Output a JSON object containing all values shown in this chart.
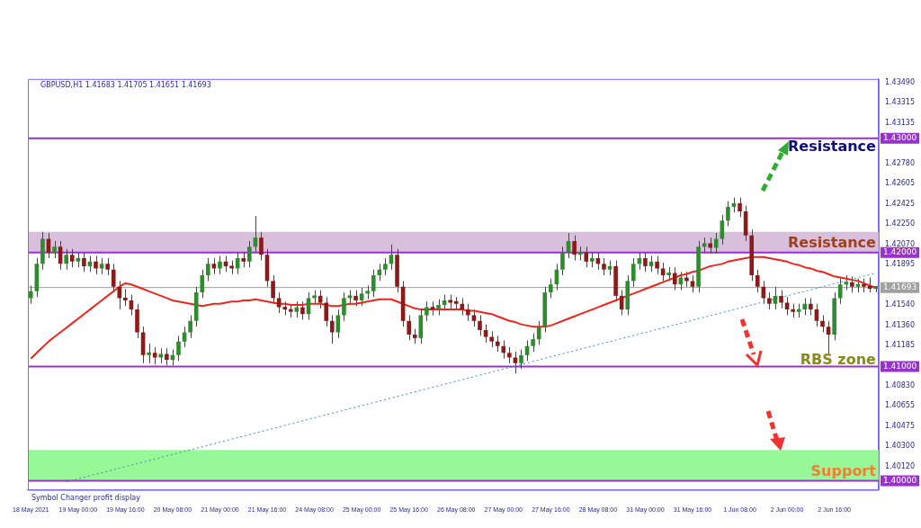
{
  "chart_data": {
    "type": "candlestick",
    "title": "GBPUSD,H1 1.41683 1.41705 1.41651 1.41693",
    "categories": [
      "18 May 2021",
      null,
      null,
      null,
      null,
      null,
      null,
      null,
      "19 May 00:00",
      null,
      null,
      null,
      null,
      null,
      null,
      null,
      "19 May 16:00",
      null,
      null,
      null,
      null,
      null,
      null,
      null,
      "20 May 08:00",
      null,
      null,
      null,
      null,
      null,
      null,
      null,
      "21 May 00:00",
      null,
      null,
      null,
      null,
      null,
      null,
      null,
      "21 May 16:00",
      null,
      null,
      null,
      null,
      null,
      null,
      null,
      "24 May 08:00",
      null,
      null,
      null,
      null,
      null,
      null,
      null,
      "25 May 00:00",
      null,
      null,
      null,
      null,
      null,
      null,
      null,
      "25 May 16:00",
      null,
      null,
      null,
      null,
      null,
      null,
      null,
      "26 May 08:00",
      null,
      null,
      null,
      null,
      null,
      null,
      null,
      "27 May 00:00",
      null,
      null,
      null,
      null,
      null,
      null,
      null,
      "27 May 16:00",
      null,
      null,
      null,
      null,
      null,
      null,
      null,
      "28 May 08:00",
      null,
      null,
      null,
      null,
      null,
      null,
      null,
      "31 May 00:00",
      null,
      null,
      null,
      null,
      null,
      null,
      null,
      "31 May 16:00",
      null,
      null,
      null,
      null,
      null,
      null,
      null,
      "1 Jun 08:00",
      null,
      null,
      null,
      null,
      null,
      null,
      null,
      "2 Jun 00:00",
      null,
      null,
      null,
      null,
      null,
      null,
      null,
      "2 Jun 16:00",
      null,
      null,
      null,
      null,
      null,
      null,
      null
    ],
    "ohlc": [
      [
        1.416,
        1.4171,
        1.4155,
        1.4166
      ],
      [
        1.4166,
        1.4195,
        1.4161,
        1.419
      ],
      [
        1.419,
        1.4218,
        1.4185,
        1.4212
      ],
      [
        1.4212,
        1.4217,
        1.4195,
        1.42
      ],
      [
        1.42,
        1.421,
        1.4195,
        1.4205
      ],
      [
        1.4205,
        1.421,
        1.4185,
        1.419
      ],
      [
        1.419,
        1.4203,
        1.4185,
        1.4198
      ],
      [
        1.4198,
        1.4203,
        1.4187,
        1.4192
      ],
      [
        1.4192,
        1.42,
        1.4187,
        1.4195
      ],
      [
        1.4195,
        1.42,
        1.4183,
        1.4188
      ],
      [
        1.4188,
        1.4197,
        1.4183,
        1.4192
      ],
      [
        1.4192,
        1.4197,
        1.4181,
        1.4186
      ],
      [
        1.4186,
        1.4195,
        1.4181,
        1.419
      ],
      [
        1.419,
        1.4195,
        1.418,
        1.4185
      ],
      [
        1.4185,
        1.419,
        1.4165,
        1.417
      ],
      [
        1.417,
        1.4175,
        1.415,
        1.416
      ],
      [
        1.416,
        1.4168,
        1.4153,
        1.4158
      ],
      [
        1.4158,
        1.4163,
        1.4145,
        1.415
      ],
      [
        1.415,
        1.4155,
        1.4125,
        1.413
      ],
      [
        1.413,
        1.4135,
        1.4103,
        1.411
      ],
      [
        1.411,
        1.412,
        1.4103,
        1.4112
      ],
      [
        1.4112,
        1.4117,
        1.4102,
        1.4108
      ],
      [
        1.4108,
        1.4116,
        1.4103,
        1.4111
      ],
      [
        1.4111,
        1.4116,
        1.4101,
        1.4106
      ],
      [
        1.4106,
        1.4115,
        1.4101,
        1.411
      ],
      [
        1.411,
        1.4127,
        1.4105,
        1.4122
      ],
      [
        1.4122,
        1.4135,
        1.4117,
        1.413
      ],
      [
        1.413,
        1.4145,
        1.4125,
        1.414
      ],
      [
        1.414,
        1.417,
        1.4135,
        1.4165
      ],
      [
        1.4165,
        1.4185,
        1.416,
        1.418
      ],
      [
        1.418,
        1.4195,
        1.4175,
        1.419
      ],
      [
        1.419,
        1.4195,
        1.4181,
        1.4186
      ],
      [
        1.4186,
        1.4197,
        1.4181,
        1.4192
      ],
      [
        1.4192,
        1.4197,
        1.4183,
        1.4188
      ],
      [
        1.4188,
        1.4193,
        1.4181,
        1.4186
      ],
      [
        1.4186,
        1.42,
        1.4181,
        1.4195
      ],
      [
        1.4195,
        1.42,
        1.4187,
        1.4192
      ],
      [
        1.4192,
        1.421,
        1.4187,
        1.4205
      ],
      [
        1.4205,
        1.4232,
        1.42,
        1.4213
      ],
      [
        1.4213,
        1.4218,
        1.4193,
        1.4198
      ],
      [
        1.4198,
        1.4203,
        1.417,
        1.4175
      ],
      [
        1.4175,
        1.418,
        1.4155,
        1.416
      ],
      [
        1.416,
        1.4165,
        1.4147,
        1.4152
      ],
      [
        1.4152,
        1.4157,
        1.4145,
        1.415
      ],
      [
        1.415,
        1.4155,
        1.4143,
        1.4148
      ],
      [
        1.4148,
        1.4157,
        1.4143,
        1.4152
      ],
      [
        1.4152,
        1.4157,
        1.4141,
        1.4146
      ],
      [
        1.4146,
        1.4165,
        1.4141,
        1.416
      ],
      [
        1.416,
        1.4167,
        1.4155,
        1.4162
      ],
      [
        1.4162,
        1.4167,
        1.4151,
        1.4156
      ],
      [
        1.4156,
        1.4161,
        1.4135,
        1.414
      ],
      [
        1.414,
        1.4145,
        1.412,
        1.413
      ],
      [
        1.413,
        1.415,
        1.4125,
        1.4145
      ],
      [
        1.4145,
        1.4165,
        1.414,
        1.416
      ],
      [
        1.416,
        1.4167,
        1.4155,
        1.4162
      ],
      [
        1.4162,
        1.4167,
        1.4153,
        1.4158
      ],
      [
        1.4158,
        1.4169,
        1.4153,
        1.4164
      ],
      [
        1.4164,
        1.4171,
        1.4159,
        1.4166
      ],
      [
        1.4166,
        1.4185,
        1.4161,
        1.418
      ],
      [
        1.418,
        1.419,
        1.4175,
        1.4185
      ],
      [
        1.4185,
        1.4195,
        1.418,
        1.419
      ],
      [
        1.419,
        1.4207,
        1.4185,
        1.4198
      ],
      [
        1.4198,
        1.4203,
        1.4165,
        1.417
      ],
      [
        1.417,
        1.4175,
        1.4135,
        1.414
      ],
      [
        1.414,
        1.4145,
        1.4123,
        1.4128
      ],
      [
        1.4128,
        1.4133,
        1.412,
        1.4125
      ],
      [
        1.4125,
        1.415,
        1.412,
        1.4145
      ],
      [
        1.4145,
        1.4157,
        1.414,
        1.4152
      ],
      [
        1.4152,
        1.4157,
        1.4145,
        1.415
      ],
      [
        1.415,
        1.4159,
        1.4145,
        1.4154
      ],
      [
        1.4154,
        1.4163,
        1.4149,
        1.4158
      ],
      [
        1.4158,
        1.4163,
        1.4151,
        1.4156
      ],
      [
        1.4156,
        1.4161,
        1.415,
        1.4155
      ],
      [
        1.4155,
        1.416,
        1.4145,
        1.415
      ],
      [
        1.415,
        1.4155,
        1.414,
        1.4145
      ],
      [
        1.4145,
        1.415,
        1.4135,
        1.414
      ],
      [
        1.414,
        1.4145,
        1.4127,
        1.4132
      ],
      [
        1.4132,
        1.4137,
        1.4121,
        1.4126
      ],
      [
        1.4126,
        1.4131,
        1.4117,
        1.4122
      ],
      [
        1.4122,
        1.4127,
        1.4113,
        1.4118
      ],
      [
        1.4118,
        1.4123,
        1.4107,
        1.4112
      ],
      [
        1.4112,
        1.4117,
        1.4103,
        1.4108
      ],
      [
        1.4108,
        1.4113,
        1.4094,
        1.4103
      ],
      [
        1.4103,
        1.4115,
        1.4098,
        1.411
      ],
      [
        1.411,
        1.4123,
        1.4105,
        1.4118
      ],
      [
        1.4118,
        1.4129,
        1.4113,
        1.4124
      ],
      [
        1.4124,
        1.414,
        1.4119,
        1.4135
      ],
      [
        1.4135,
        1.417,
        1.413,
        1.4165
      ],
      [
        1.4165,
        1.4177,
        1.416,
        1.4172
      ],
      [
        1.4172,
        1.419,
        1.4167,
        1.4185
      ],
      [
        1.4185,
        1.4205,
        1.418,
        1.42
      ],
      [
        1.42,
        1.4217,
        1.4195,
        1.421
      ],
      [
        1.421,
        1.4215,
        1.4193,
        1.4198
      ],
      [
        1.4198,
        1.4205,
        1.4193,
        1.42
      ],
      [
        1.42,
        1.4205,
        1.4187,
        1.4192
      ],
      [
        1.4192,
        1.42,
        1.4187,
        1.4195
      ],
      [
        1.4195,
        1.42,
        1.4185,
        1.419
      ],
      [
        1.419,
        1.4195,
        1.418,
        1.4185
      ],
      [
        1.4185,
        1.4193,
        1.418,
        1.4188
      ],
      [
        1.4188,
        1.4193,
        1.4157,
        1.4162
      ],
      [
        1.4162,
        1.4167,
        1.4145,
        1.415
      ],
      [
        1.415,
        1.418,
        1.4145,
        1.4175
      ],
      [
        1.4175,
        1.4195,
        1.417,
        1.419
      ],
      [
        1.419,
        1.42,
        1.4185,
        1.4195
      ],
      [
        1.4195,
        1.42,
        1.4183,
        1.4188
      ],
      [
        1.4188,
        1.4197,
        1.4183,
        1.4192
      ],
      [
        1.4192,
        1.4197,
        1.4181,
        1.4186
      ],
      [
        1.4186,
        1.4191,
        1.4175,
        1.418
      ],
      [
        1.418,
        1.4187,
        1.4175,
        1.4182
      ],
      [
        1.4182,
        1.4187,
        1.4167,
        1.4172
      ],
      [
        1.4172,
        1.4183,
        1.4167,
        1.4178
      ],
      [
        1.4178,
        1.4183,
        1.417,
        1.4175
      ],
      [
        1.4175,
        1.418,
        1.4165,
        1.417
      ],
      [
        1.417,
        1.421,
        1.4165,
        1.4205
      ],
      [
        1.4205,
        1.4213,
        1.42,
        1.4208
      ],
      [
        1.4208,
        1.4213,
        1.4199,
        1.4204
      ],
      [
        1.4204,
        1.4217,
        1.4199,
        1.4212
      ],
      [
        1.4212,
        1.4233,
        1.4207,
        1.4228
      ],
      [
        1.4228,
        1.4245,
        1.4223,
        1.424
      ],
      [
        1.424,
        1.4248,
        1.4235,
        1.4243
      ],
      [
        1.4243,
        1.4248,
        1.4231,
        1.4236
      ],
      [
        1.4236,
        1.4241,
        1.421,
        1.4215
      ],
      [
        1.4215,
        1.422,
        1.4175,
        1.418
      ],
      [
        1.418,
        1.4185,
        1.4165,
        1.417
      ],
      [
        1.417,
        1.4175,
        1.4155,
        1.416
      ],
      [
        1.416,
        1.4165,
        1.415,
        1.4155
      ],
      [
        1.4155,
        1.417,
        1.415,
        1.4162
      ],
      [
        1.4162,
        1.4167,
        1.4151,
        1.4156
      ],
      [
        1.4156,
        1.4161,
        1.4145,
        1.415
      ],
      [
        1.415,
        1.4155,
        1.4143,
        1.4148
      ],
      [
        1.4148,
        1.4155,
        1.4143,
        1.415
      ],
      [
        1.415,
        1.416,
        1.4145,
        1.4155
      ],
      [
        1.4155,
        1.416,
        1.4145,
        1.415
      ],
      [
        1.415,
        1.4155,
        1.4135,
        1.414
      ],
      [
        1.414,
        1.4145,
        1.413,
        1.4135
      ],
      [
        1.4135,
        1.414,
        1.411,
        1.4128
      ],
      [
        1.4128,
        1.4165,
        1.4123,
        1.416
      ],
      [
        1.416,
        1.4177,
        1.4155,
        1.4172
      ],
      [
        1.4172,
        1.418,
        1.4167,
        1.4174
      ],
      [
        1.4174,
        1.4179,
        1.4165,
        1.417
      ],
      [
        1.417,
        1.4177,
        1.4165,
        1.4172
      ],
      [
        1.4172,
        1.4177,
        1.4165,
        1.417
      ],
      [
        1.417,
        1.4178,
        1.4165,
        1.41683
      ],
      [
        1.41683,
        1.41705,
        1.41651,
        1.41693
      ]
    ],
    "series": [
      {
        "type": "line",
        "color": "#e8281e",
        "values": [
          1.4107,
          1.4112,
          1.4117,
          1.4122,
          1.4126,
          1.413,
          1.4134,
          1.4138,
          1.4142,
          1.4146,
          1.415,
          1.4154,
          1.4158,
          1.4162,
          1.4166,
          1.417,
          1.4173,
          1.4172,
          1.417,
          1.4168,
          1.4166,
          1.4164,
          1.4162,
          1.416,
          1.4158,
          1.4157,
          1.4156,
          1.4155,
          1.4154,
          1.4153,
          1.4154,
          1.4155,
          1.4155,
          1.4156,
          1.4157,
          1.4157,
          1.4158,
          1.4158,
          1.4159,
          1.4158,
          1.4157,
          1.4156,
          1.4155,
          1.4155,
          1.4154,
          1.4154,
          1.4154,
          1.4155,
          1.4155,
          1.4155,
          1.4154,
          1.4153,
          1.4153,
          1.4154,
          1.4155,
          1.4155,
          1.4156,
          1.4157,
          1.4158,
          1.4159,
          1.4159,
          1.4159,
          1.4157,
          1.4155,
          1.4153,
          1.4151,
          1.415,
          1.415,
          1.415,
          1.415,
          1.415,
          1.415,
          1.415,
          1.415,
          1.4149,
          1.4149,
          1.4148,
          1.4147,
          1.4146,
          1.4144,
          1.4142,
          1.414,
          1.4139,
          1.4137,
          1.4136,
          1.4135,
          1.4135,
          1.4135,
          1.4136,
          1.4138,
          1.414,
          1.4142,
          1.4144,
          1.4146,
          1.4148,
          1.415,
          1.4152,
          1.4154,
          1.4156,
          1.4158,
          1.416,
          1.4162,
          1.4164,
          1.4166,
          1.4168,
          1.417,
          1.4172,
          1.4174,
          1.4176,
          1.4178,
          1.418,
          1.4181,
          1.4183,
          1.4184,
          1.4186,
          1.4188,
          1.4189,
          1.419,
          1.4192,
          1.4193,
          1.4194,
          1.4195,
          1.4196,
          1.4196,
          1.4196,
          1.4195,
          1.4194,
          1.4193,
          1.4192,
          1.419,
          1.4189,
          1.4187,
          1.4186,
          1.4184,
          1.4183,
          1.4181,
          1.4179,
          1.4178,
          1.4177,
          1.4176,
          1.4175,
          1.4173,
          1.4171,
          1.4169
        ]
      },
      {
        "type": "line",
        "color": "#3a8fa8",
        "line_style": "dotted",
        "values": [
          null,
          null,
          null,
          null,
          null,
          null,
          1.3999,
          null,
          null,
          null,
          null,
          null,
          null,
          null,
          null,
          null,
          null,
          null,
          null,
          null,
          null,
          null,
          null,
          null,
          null,
          null,
          null,
          null,
          null,
          null,
          null,
          null,
          null,
          null,
          null,
          null,
          null,
          null,
          null,
          null,
          null,
          null,
          null,
          null,
          null,
          null,
          null,
          null,
          null,
          null,
          null,
          null,
          null,
          null,
          null,
          null,
          null,
          null,
          null,
          null,
          null,
          null,
          null,
          null,
          null,
          null,
          null,
          null,
          null,
          null,
          null,
          null,
          null,
          null,
          null,
          null,
          null,
          null,
          null,
          null,
          null,
          null,
          null,
          null,
          null,
          null,
          null,
          null,
          null,
          null,
          null,
          null,
          null,
          null,
          null,
          null,
          null,
          null,
          null,
          null,
          null,
          null,
          null,
          null,
          null,
          null,
          null,
          null,
          null,
          null,
          null,
          null,
          null,
          null,
          null,
          null,
          null,
          null,
          null,
          null,
          null,
          null,
          null,
          null,
          null,
          null,
          null,
          null,
          null,
          null,
          null,
          null,
          null,
          null,
          null,
          null,
          null,
          null,
          null,
          null,
          null,
          null,
          null,
          1.4182
        ]
      }
    ],
    "ylim": [
      1.3992,
      1.4352
    ],
    "yticks": [
      {
        "value": 1.4349,
        "label": "1.43490"
      },
      {
        "value": 1.43315,
        "label": "1.43315"
      },
      {
        "value": 1.43135,
        "label": "1.43135"
      },
      {
        "value": 1.4278,
        "label": "1.42780"
      },
      {
        "value": 1.42605,
        "label": "1.42605"
      },
      {
        "value": 1.42425,
        "label": "1.42425"
      },
      {
        "value": 1.4225,
        "label": "1.42250"
      },
      {
        "value": 1.4207,
        "label": "1.42070"
      },
      {
        "value": 1.41895,
        "label": "1.41895"
      },
      {
        "value": 1.4154,
        "label": "1.41540"
      },
      {
        "value": 1.4136,
        "label": "1.41360"
      },
      {
        "value": 1.41185,
        "label": "1.41185"
      },
      {
        "value": 1.4083,
        "label": "1.40830"
      },
      {
        "value": 1.40655,
        "label": "1.40655"
      },
      {
        "value": 1.40475,
        "label": "1.40475"
      },
      {
        "value": 1.403,
        "label": "1.40300"
      },
      {
        "value": 1.4012,
        "label": "1.40120"
      }
    ],
    "bands": [
      {
        "axis": "y",
        "from": 1.42,
        "to": 1.4218,
        "color": "#d8bfdc"
      },
      {
        "axis": "y",
        "from": 1.4,
        "to": 1.4027,
        "color": "#98f898"
      }
    ],
    "ref_lines": [
      {
        "axis": "y",
        "value": 1.43,
        "label": "1.43000",
        "color": "#9932cc"
      },
      {
        "axis": "y",
        "value": 1.42,
        "label": "1.42000",
        "color": "#9932cc"
      },
      {
        "axis": "y",
        "value": 1.41693,
        "label": "1.41693",
        "color": "#a0a0a0"
      },
      {
        "axis": "y",
        "value": 1.41,
        "label": "1.41000",
        "color": "#9932cc"
      },
      {
        "axis": "y",
        "value": 1.4,
        "label": "1.40000",
        "color": "#9932cc"
      }
    ],
    "annotations": [
      "Resistance",
      "Resistance",
      "RBS zone",
      "Support",
      "Symbol Changer profit display"
    ],
    "grid": false,
    "legend": false,
    "marker": "none"
  }
}
